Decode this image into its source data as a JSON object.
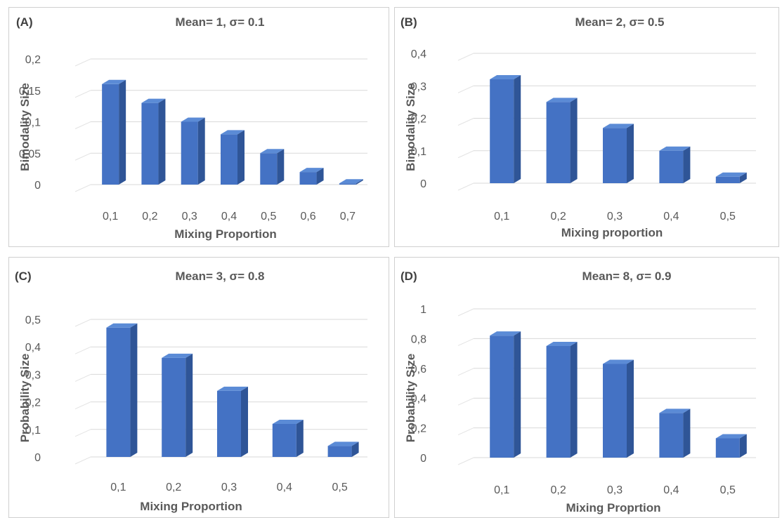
{
  "chart_data": [
    {
      "type": "bar",
      "panel_label": "(A)",
      "title": "Mean= 1, σ= 0.1",
      "xlabel": "Mixing Proportion",
      "ylabel": "Bimodality Size",
      "categories": [
        "0,1",
        "0,2",
        "0,3",
        "0,4",
        "0,5",
        "0,6",
        "0,7"
      ],
      "values": [
        0.16,
        0.13,
        0.1,
        0.08,
        0.05,
        0.02,
        0.002
      ],
      "ylim": [
        0,
        0.2
      ],
      "yticks": [
        "0",
        "0,05",
        "0,1",
        "0,15",
        "0,2"
      ],
      "grid": true,
      "style": "3d-column",
      "bar_color": "#4472C4"
    },
    {
      "type": "bar",
      "panel_label": "(B)",
      "title": "Mean= 2, σ= 0.5",
      "xlabel": "Mixing proportion",
      "ylabel": "Bimodality Size",
      "categories": [
        "0,1",
        "0,2",
        "0,3",
        "0,4",
        "0,5"
      ],
      "values": [
        0.32,
        0.25,
        0.17,
        0.1,
        0.02
      ],
      "ylim": [
        0,
        0.4
      ],
      "yticks": [
        "0",
        "0,1",
        "0,2",
        "0,3",
        "0,4"
      ],
      "grid": true,
      "style": "3d-column",
      "bar_color": "#4472C4"
    },
    {
      "type": "bar",
      "panel_label": "(C)",
      "title": "Mean= 3, σ= 0.8",
      "xlabel": "Mixing Proportion",
      "ylabel": "Probability Size",
      "categories": [
        "0,1",
        "0,2",
        "0,3",
        "0,4",
        "0,5"
      ],
      "values": [
        0.47,
        0.36,
        0.24,
        0.12,
        0.04
      ],
      "ylim": [
        0,
        0.5
      ],
      "yticks": [
        "0",
        "0,1",
        "0,2",
        "0,3",
        "0,4",
        "0,5"
      ],
      "grid": true,
      "style": "3d-column",
      "bar_color": "#4472C4"
    },
    {
      "type": "bar",
      "panel_label": "(D)",
      "title": "Mean= 8, σ= 0.9",
      "xlabel": "Mixing Proprtion",
      "ylabel": "Probability Size",
      "categories": [
        "0,1",
        "0,2",
        "0,3",
        "0,4",
        "0,5"
      ],
      "values": [
        0.82,
        0.75,
        0.63,
        0.3,
        0.13
      ],
      "ylim": [
        0,
        1
      ],
      "yticks": [
        "0",
        "0,2",
        "0,4",
        "0,6",
        "0,8",
        "1"
      ],
      "grid": true,
      "style": "3d-column",
      "bar_color": "#4472C4"
    }
  ]
}
